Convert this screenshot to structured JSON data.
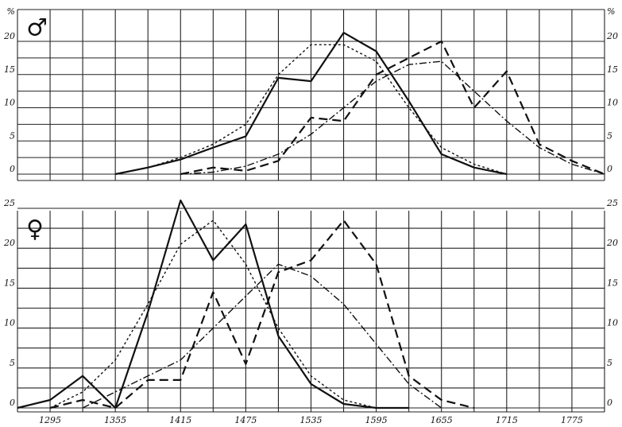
{
  "chart_data": [
    {
      "panel": "male",
      "symbol": "♂",
      "type": "line",
      "unit": "%",
      "ylim": [
        0,
        20
      ],
      "yticks": [
        "0",
        "5",
        "10",
        "15",
        "20"
      ],
      "grid": true,
      "series": [
        {
          "style": "solid",
          "x": [
            1355,
            1385,
            1415,
            1445,
            1475,
            1505,
            1535,
            1565,
            1595,
            1625,
            1655,
            1685,
            1715
          ],
          "y": [
            0,
            1,
            2.2,
            4,
            5.7,
            14.5,
            14,
            21.3,
            18.5,
            11,
            3,
            1,
            0
          ]
        },
        {
          "style": "dotted",
          "x": [
            1355,
            1385,
            1415,
            1445,
            1475,
            1505,
            1535,
            1565,
            1595,
            1625,
            1655,
            1685,
            1715
          ],
          "y": [
            0,
            1,
            2.5,
            4.5,
            7.5,
            15,
            19.5,
            19.5,
            17,
            10,
            4,
            1.5,
            0
          ]
        },
        {
          "style": "dashed",
          "x": [
            1415,
            1445,
            1475,
            1505,
            1535,
            1565,
            1595,
            1625,
            1655,
            1685,
            1715,
            1745,
            1775,
            1805
          ],
          "y": [
            0,
            1,
            0.5,
            2,
            8.5,
            8,
            15,
            17.5,
            20,
            10,
            15.5,
            4.5,
            2,
            0
          ]
        },
        {
          "style": "dash-dot",
          "x": [
            1415,
            1445,
            1475,
            1505,
            1535,
            1565,
            1595,
            1625,
            1655,
            1685,
            1715,
            1745,
            1775,
            1805
          ],
          "y": [
            0,
            0.3,
            1.2,
            3,
            6,
            10,
            14,
            16.5,
            17,
            12.5,
            8,
            4,
            1.5,
            0
          ]
        }
      ]
    },
    {
      "panel": "female",
      "symbol": "♀",
      "type": "line",
      "ylim": [
        0,
        25
      ],
      "yticks": [
        "0",
        "5",
        "10",
        "15",
        "20",
        "25"
      ],
      "yticks_right": [
        "0",
        "5",
        "10",
        "15",
        "20",
        "25"
      ],
      "grid": true,
      "xticks": [
        "1295",
        "1355",
        "1415",
        "1475",
        "1535",
        "1595",
        "1655",
        "1715",
        "1775"
      ],
      "series": [
        {
          "style": "solid",
          "x": [
            1265,
            1295,
            1325,
            1355,
            1385,
            1415,
            1445,
            1475,
            1505,
            1535,
            1565,
            1595,
            1625
          ],
          "y": [
            0,
            1,
            4,
            0,
            12,
            26,
            18.5,
            23,
            9,
            3,
            0.5,
            0,
            0
          ]
        },
        {
          "style": "dotted",
          "x": [
            1295,
            1325,
            1355,
            1385,
            1415,
            1445,
            1475,
            1505,
            1535,
            1565,
            1595,
            1625
          ],
          "y": [
            0,
            2,
            6,
            13,
            20.5,
            23.5,
            18,
            10,
            4,
            1,
            0,
            0
          ]
        },
        {
          "style": "dashed",
          "x": [
            1295,
            1325,
            1355,
            1385,
            1415,
            1445,
            1475,
            1505,
            1535,
            1565,
            1595,
            1625,
            1655,
            1685
          ],
          "y": [
            0,
            1,
            0,
            3.5,
            3.5,
            14.5,
            5.5,
            17,
            18.5,
            23.5,
            18,
            4,
            1,
            0
          ]
        },
        {
          "style": "dash-dot",
          "x": [
            1325,
            1355,
            1385,
            1415,
            1445,
            1475,
            1505,
            1535,
            1565,
            1595,
            1625,
            1655
          ],
          "y": [
            0,
            2,
            4,
            6,
            10,
            14,
            18,
            16.5,
            13,
            8,
            3,
            0
          ]
        }
      ]
    }
  ],
  "styles": {
    "line": "#111111",
    "grid": "#222222",
    "background": "#ffffff"
  }
}
